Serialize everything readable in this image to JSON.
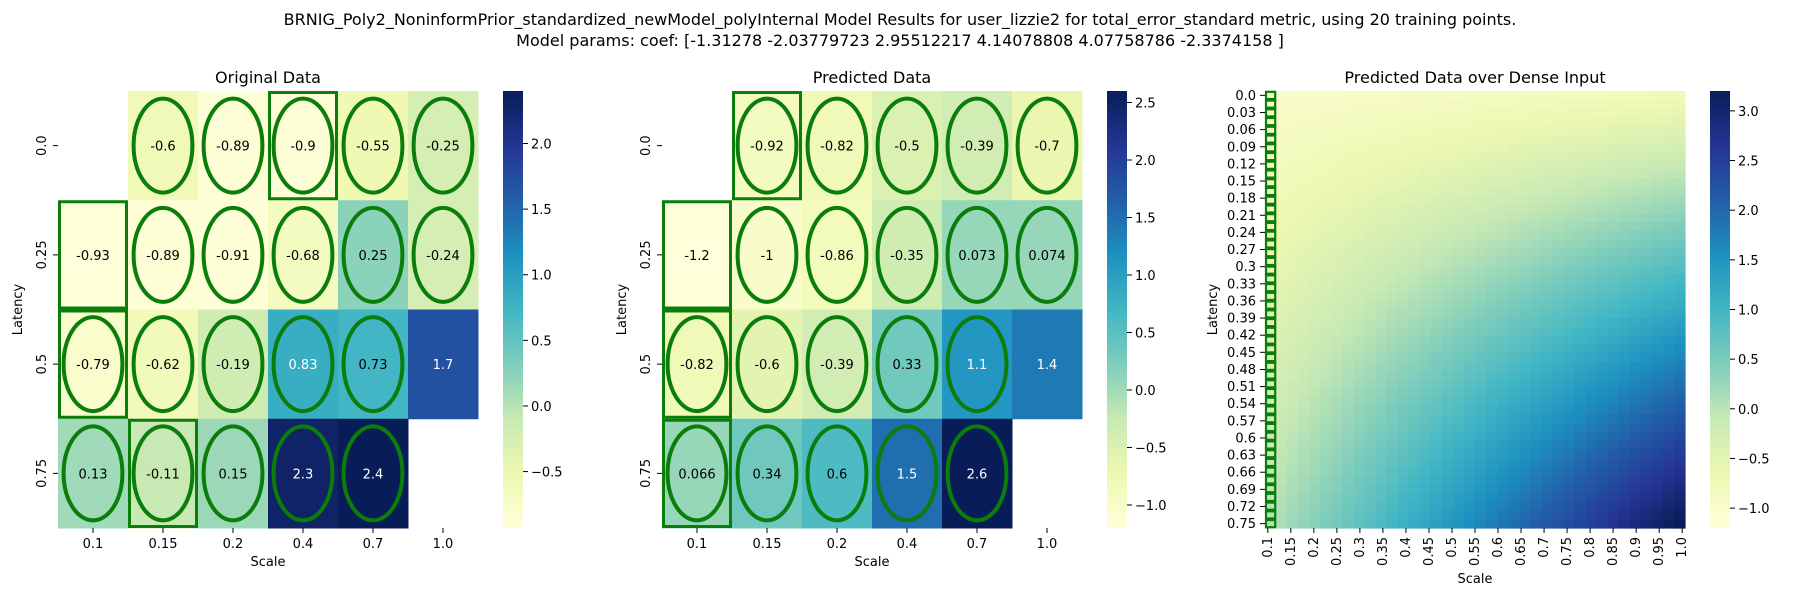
{
  "figure": {
    "title_line1": "BRNIG_Poly2_NoninformPrior_standardized_newModel_polyInternal Model Results for user_lizzie2 for total_error_standard metric, using 20 training points.",
    "title_line2": "Model params: coef: [-1.31278     -2.03779723  2.95512217  4.14078808  4.07758786 -2.3374158 ]"
  },
  "colorscale": [
    "#ffffd9",
    "#edf8b1",
    "#c7e9b4",
    "#7fcdbb",
    "#41b6c4",
    "#1d91c0",
    "#225ea8",
    "#253494",
    "#081d58"
  ],
  "marker_color": "#0a7d0a",
  "chart_data": [
    {
      "type": "heatmap",
      "title": "Original Data",
      "xlabel": "Scale",
      "ylabel": "Latency",
      "x_categories": [
        "0.1",
        "0.15",
        "0.2",
        "0.4",
        "0.7",
        "1.0"
      ],
      "y_categories": [
        "0.0",
        "0.25",
        "0.5",
        "0.75"
      ],
      "values": [
        [
          null,
          -0.6,
          -0.89,
          -0.9,
          -0.55,
          -0.25
        ],
        [
          -0.93,
          -0.89,
          -0.91,
          -0.68,
          0.25,
          -0.24
        ],
        [
          -0.79,
          -0.62,
          -0.19,
          0.83,
          0.73,
          1.7
        ],
        [
          0.13,
          -0.11,
          0.15,
          2.3,
          2.4,
          null
        ]
      ],
      "cell_labels": [
        [
          "",
          "-0.6",
          "-0.89",
          "-0.9",
          "-0.55",
          "-0.25"
        ],
        [
          "-0.93",
          "-0.89",
          "-0.91",
          "-0.68",
          "0.25",
          "-0.24"
        ],
        [
          "-0.79",
          "-0.62",
          "-0.19",
          "0.83",
          "0.73",
          "1.7"
        ],
        [
          "0.13",
          "-0.11",
          "0.15",
          "2.3",
          "2.4",
          ""
        ]
      ],
      "ellipse_markers": [
        [
          0,
          1
        ],
        [
          0,
          2
        ],
        [
          0,
          3
        ],
        [
          0,
          4
        ],
        [
          0,
          5
        ],
        [
          1,
          1
        ],
        [
          1,
          2
        ],
        [
          1,
          3
        ],
        [
          1,
          4
        ],
        [
          1,
          5
        ],
        [
          2,
          0
        ],
        [
          2,
          1
        ],
        [
          2,
          2
        ],
        [
          2,
          3
        ],
        [
          2,
          4
        ],
        [
          3,
          0
        ],
        [
          3,
          1
        ],
        [
          3,
          2
        ],
        [
          3,
          3
        ],
        [
          3,
          4
        ]
      ],
      "box_markers": [
        [
          0,
          3
        ],
        [
          1,
          0
        ],
        [
          2,
          0
        ],
        [
          3,
          1
        ]
      ],
      "vmin": -0.93,
      "vmax": 2.4,
      "colorbar_ticks": [
        -0.5,
        0.0,
        0.5,
        1.0,
        1.5,
        2.0
      ],
      "colorbar_tick_labels": [
        "−0.5",
        "0.0",
        "0.5",
        "1.0",
        "1.5",
        "2.0"
      ]
    },
    {
      "type": "heatmap",
      "title": "Predicted Data",
      "xlabel": "Scale",
      "ylabel": "Latency",
      "x_categories": [
        "0.1",
        "0.15",
        "0.2",
        "0.4",
        "0.7",
        "1.0"
      ],
      "y_categories": [
        "0.0",
        "0.25",
        "0.5",
        "0.75"
      ],
      "values": [
        [
          null,
          -0.92,
          -0.82,
          -0.5,
          -0.39,
          -0.7
        ],
        [
          -1.2,
          -1.0,
          -0.86,
          -0.35,
          0.073,
          0.074
        ],
        [
          -0.82,
          -0.6,
          -0.39,
          0.33,
          1.1,
          1.4
        ],
        [
          0.066,
          0.34,
          0.6,
          1.5,
          2.6,
          null
        ]
      ],
      "cell_labels": [
        [
          "",
          "-0.92",
          "-0.82",
          "-0.5",
          "-0.39",
          "-0.7"
        ],
        [
          "-1.2",
          "-1",
          "-0.86",
          "-0.35",
          "0.073",
          "0.074"
        ],
        [
          "-0.82",
          "-0.6",
          "-0.39",
          "0.33",
          "1.1",
          "1.4"
        ],
        [
          "0.066",
          "0.34",
          "0.6",
          "1.5",
          "2.6",
          ""
        ]
      ],
      "ellipse_markers": [
        [
          0,
          1
        ],
        [
          0,
          2
        ],
        [
          0,
          3
        ],
        [
          0,
          4
        ],
        [
          0,
          5
        ],
        [
          1,
          1
        ],
        [
          1,
          2
        ],
        [
          1,
          3
        ],
        [
          1,
          4
        ],
        [
          1,
          5
        ],
        [
          2,
          0
        ],
        [
          2,
          1
        ],
        [
          2,
          2
        ],
        [
          2,
          3
        ],
        [
          2,
          4
        ],
        [
          3,
          0
        ],
        [
          3,
          1
        ],
        [
          3,
          2
        ],
        [
          3,
          3
        ],
        [
          3,
          4
        ]
      ],
      "box_markers": [
        [
          0,
          1
        ],
        [
          1,
          0
        ],
        [
          2,
          0
        ],
        [
          3,
          0
        ]
      ],
      "vmin": -1.2,
      "vmax": 2.6,
      "colorbar_ticks": [
        -1.0,
        -0.5,
        0.0,
        0.5,
        1.0,
        1.5,
        2.0,
        2.5
      ],
      "colorbar_tick_labels": [
        "−1.0",
        "−0.5",
        "0.0",
        "0.5",
        "1.0",
        "1.5",
        "2.0",
        "2.5"
      ]
    },
    {
      "type": "heatmap",
      "title": "Predicted Data over Dense Input",
      "xlabel": "Scale",
      "ylabel": "Latency",
      "x_categories": [
        "0.1",
        "0.15",
        "0.2",
        "0.25",
        "0.3",
        "0.35",
        "0.4",
        "0.45",
        "0.5",
        "0.55",
        "0.6",
        "0.65",
        "0.7",
        "0.75",
        "0.8",
        "0.85",
        "0.9",
        "0.95",
        "1.0"
      ],
      "y_categories": [
        "0.0",
        "0.03",
        "0.06",
        "0.09",
        "0.12",
        "0.15",
        "0.18",
        "0.21",
        "0.24",
        "0.27",
        "0.3",
        "0.33",
        "0.36",
        "0.39",
        "0.42",
        "0.45",
        "0.48",
        "0.51",
        "0.54",
        "0.57",
        "0.6",
        "0.63",
        "0.66",
        "0.69",
        "0.72",
        "0.75"
      ],
      "corner_values": {
        "top_left": -1.0,
        "top_right": -0.75,
        "bottom_left": 0.05,
        "bottom_right": 3.2
      },
      "box_markers_column": "0.1",
      "vmin": -1.2,
      "vmax": 3.2,
      "colorbar_ticks": [
        -1.0,
        -0.5,
        0.0,
        0.5,
        1.0,
        1.5,
        2.0,
        2.5,
        3.0
      ],
      "colorbar_tick_labels": [
        "−1.0",
        "−0.5",
        "0.0",
        "0.5",
        "1.0",
        "1.5",
        "2.0",
        "2.5",
        "3.0"
      ]
    }
  ]
}
